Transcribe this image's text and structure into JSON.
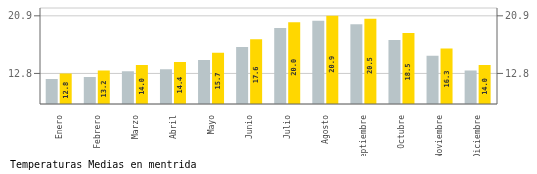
{
  "chart_data": {
    "type": "bar",
    "title": "Temperaturas Medias en mentrida",
    "categories": [
      "Enero",
      "Febrero",
      "Marzo",
      "Abril",
      "Mayo",
      "Junio",
      "Julio",
      "Agosto",
      "Septiembre",
      "Octubre",
      "Noviembre",
      "Diciembre"
    ],
    "series": [
      {
        "color": "#B8C4C8",
        "values": [
          12.0,
          12.3,
          13.1,
          13.4,
          14.7,
          16.5,
          19.2,
          20.2,
          19.7,
          17.5,
          15.3,
          13.2
        ]
      },
      {
        "color": "#FFD700",
        "values": [
          12.8,
          13.2,
          14.0,
          14.4,
          15.7,
          17.6,
          20.0,
          20.9,
          20.5,
          18.5,
          16.3,
          14.0
        ],
        "value_labels": [
          "12.8",
          "13.2",
          "14.0",
          "14.4",
          "15.7",
          "17.6",
          "20.0",
          "20.9",
          "20.5",
          "18.5",
          "16.3",
          "14.0"
        ],
        "data_labels": true
      }
    ],
    "ylim": [
      8.5,
      22.0
    ],
    "yticks": [
      12.8,
      20.9
    ],
    "y2lim": [
      8.5,
      22.0
    ],
    "y2ticks": [
      12.8,
      20.9
    ],
    "grid": true
  }
}
